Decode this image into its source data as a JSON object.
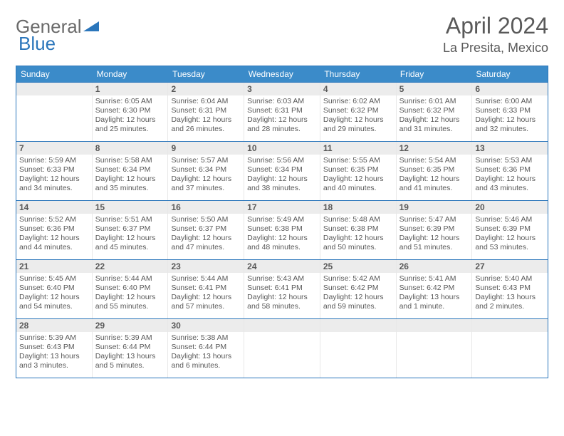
{
  "logo": {
    "text1": "General",
    "text2": "Blue"
  },
  "header": {
    "month": "April 2024",
    "location": "La Presita, Mexico"
  },
  "colors": {
    "header_bg": "#3b8bc9",
    "border": "#2b76bb",
    "daynum_bg": "#ececec",
    "text": "#595959",
    "logo_gray": "#6a6a6a",
    "logo_blue": "#2b76bb"
  },
  "dayNames": [
    "Sunday",
    "Monday",
    "Tuesday",
    "Wednesday",
    "Thursday",
    "Friday",
    "Saturday"
  ],
  "weeks": [
    [
      {
        "n": "",
        "sr": "",
        "ss": "",
        "dl": ""
      },
      {
        "n": "1",
        "sr": "Sunrise: 6:05 AM",
        "ss": "Sunset: 6:30 PM",
        "dl": "Daylight: 12 hours and 25 minutes."
      },
      {
        "n": "2",
        "sr": "Sunrise: 6:04 AM",
        "ss": "Sunset: 6:31 PM",
        "dl": "Daylight: 12 hours and 26 minutes."
      },
      {
        "n": "3",
        "sr": "Sunrise: 6:03 AM",
        "ss": "Sunset: 6:31 PM",
        "dl": "Daylight: 12 hours and 28 minutes."
      },
      {
        "n": "4",
        "sr": "Sunrise: 6:02 AM",
        "ss": "Sunset: 6:32 PM",
        "dl": "Daylight: 12 hours and 29 minutes."
      },
      {
        "n": "5",
        "sr": "Sunrise: 6:01 AM",
        "ss": "Sunset: 6:32 PM",
        "dl": "Daylight: 12 hours and 31 minutes."
      },
      {
        "n": "6",
        "sr": "Sunrise: 6:00 AM",
        "ss": "Sunset: 6:33 PM",
        "dl": "Daylight: 12 hours and 32 minutes."
      }
    ],
    [
      {
        "n": "7",
        "sr": "Sunrise: 5:59 AM",
        "ss": "Sunset: 6:33 PM",
        "dl": "Daylight: 12 hours and 34 minutes."
      },
      {
        "n": "8",
        "sr": "Sunrise: 5:58 AM",
        "ss": "Sunset: 6:34 PM",
        "dl": "Daylight: 12 hours and 35 minutes."
      },
      {
        "n": "9",
        "sr": "Sunrise: 5:57 AM",
        "ss": "Sunset: 6:34 PM",
        "dl": "Daylight: 12 hours and 37 minutes."
      },
      {
        "n": "10",
        "sr": "Sunrise: 5:56 AM",
        "ss": "Sunset: 6:34 PM",
        "dl": "Daylight: 12 hours and 38 minutes."
      },
      {
        "n": "11",
        "sr": "Sunrise: 5:55 AM",
        "ss": "Sunset: 6:35 PM",
        "dl": "Daylight: 12 hours and 40 minutes."
      },
      {
        "n": "12",
        "sr": "Sunrise: 5:54 AM",
        "ss": "Sunset: 6:35 PM",
        "dl": "Daylight: 12 hours and 41 minutes."
      },
      {
        "n": "13",
        "sr": "Sunrise: 5:53 AM",
        "ss": "Sunset: 6:36 PM",
        "dl": "Daylight: 12 hours and 43 minutes."
      }
    ],
    [
      {
        "n": "14",
        "sr": "Sunrise: 5:52 AM",
        "ss": "Sunset: 6:36 PM",
        "dl": "Daylight: 12 hours and 44 minutes."
      },
      {
        "n": "15",
        "sr": "Sunrise: 5:51 AM",
        "ss": "Sunset: 6:37 PM",
        "dl": "Daylight: 12 hours and 45 minutes."
      },
      {
        "n": "16",
        "sr": "Sunrise: 5:50 AM",
        "ss": "Sunset: 6:37 PM",
        "dl": "Daylight: 12 hours and 47 minutes."
      },
      {
        "n": "17",
        "sr": "Sunrise: 5:49 AM",
        "ss": "Sunset: 6:38 PM",
        "dl": "Daylight: 12 hours and 48 minutes."
      },
      {
        "n": "18",
        "sr": "Sunrise: 5:48 AM",
        "ss": "Sunset: 6:38 PM",
        "dl": "Daylight: 12 hours and 50 minutes."
      },
      {
        "n": "19",
        "sr": "Sunrise: 5:47 AM",
        "ss": "Sunset: 6:39 PM",
        "dl": "Daylight: 12 hours and 51 minutes."
      },
      {
        "n": "20",
        "sr": "Sunrise: 5:46 AM",
        "ss": "Sunset: 6:39 PM",
        "dl": "Daylight: 12 hours and 53 minutes."
      }
    ],
    [
      {
        "n": "21",
        "sr": "Sunrise: 5:45 AM",
        "ss": "Sunset: 6:40 PM",
        "dl": "Daylight: 12 hours and 54 minutes."
      },
      {
        "n": "22",
        "sr": "Sunrise: 5:44 AM",
        "ss": "Sunset: 6:40 PM",
        "dl": "Daylight: 12 hours and 55 minutes."
      },
      {
        "n": "23",
        "sr": "Sunrise: 5:44 AM",
        "ss": "Sunset: 6:41 PM",
        "dl": "Daylight: 12 hours and 57 minutes."
      },
      {
        "n": "24",
        "sr": "Sunrise: 5:43 AM",
        "ss": "Sunset: 6:41 PM",
        "dl": "Daylight: 12 hours and 58 minutes."
      },
      {
        "n": "25",
        "sr": "Sunrise: 5:42 AM",
        "ss": "Sunset: 6:42 PM",
        "dl": "Daylight: 12 hours and 59 minutes."
      },
      {
        "n": "26",
        "sr": "Sunrise: 5:41 AM",
        "ss": "Sunset: 6:42 PM",
        "dl": "Daylight: 13 hours and 1 minute."
      },
      {
        "n": "27",
        "sr": "Sunrise: 5:40 AM",
        "ss": "Sunset: 6:43 PM",
        "dl": "Daylight: 13 hours and 2 minutes."
      }
    ],
    [
      {
        "n": "28",
        "sr": "Sunrise: 5:39 AM",
        "ss": "Sunset: 6:43 PM",
        "dl": "Daylight: 13 hours and 3 minutes."
      },
      {
        "n": "29",
        "sr": "Sunrise: 5:39 AM",
        "ss": "Sunset: 6:44 PM",
        "dl": "Daylight: 13 hours and 5 minutes."
      },
      {
        "n": "30",
        "sr": "Sunrise: 5:38 AM",
        "ss": "Sunset: 6:44 PM",
        "dl": "Daylight: 13 hours and 6 minutes."
      },
      {
        "n": "",
        "sr": "",
        "ss": "",
        "dl": ""
      },
      {
        "n": "",
        "sr": "",
        "ss": "",
        "dl": ""
      },
      {
        "n": "",
        "sr": "",
        "ss": "",
        "dl": ""
      },
      {
        "n": "",
        "sr": "",
        "ss": "",
        "dl": ""
      }
    ]
  ]
}
